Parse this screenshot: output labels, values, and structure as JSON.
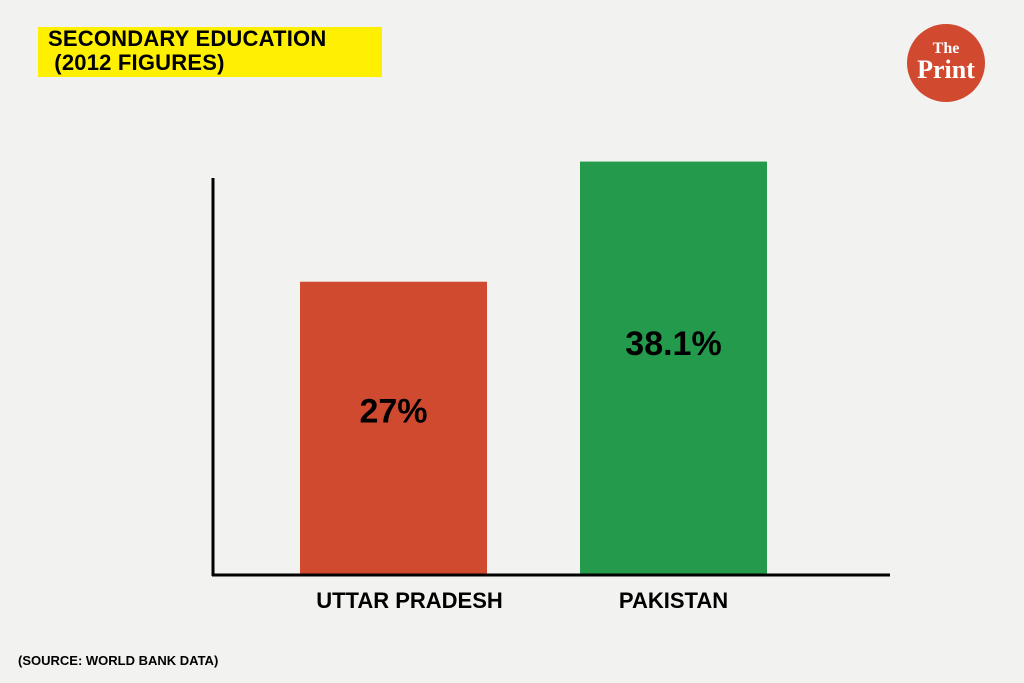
{
  "title": {
    "line1": "SECONDARY EDUCATION",
    "line2": " (2012 FIGURES)"
  },
  "logo": {
    "the": "The",
    "print": "Print"
  },
  "source": "(SOURCE: WORLD BANK DATA)",
  "chart_data": {
    "type": "bar",
    "title": "SECONDARY EDUCATION (2012 FIGURES)",
    "categories": [
      "UTTAR PRADESH",
      "PAKISTAN"
    ],
    "values": [
      27,
      38.1
    ],
    "value_labels": [
      "27%",
      "38.1%"
    ],
    "colors": [
      "#d04a30",
      "#249a4c"
    ],
    "ylim": [
      0,
      40
    ],
    "grid": false,
    "legend": "none"
  }
}
